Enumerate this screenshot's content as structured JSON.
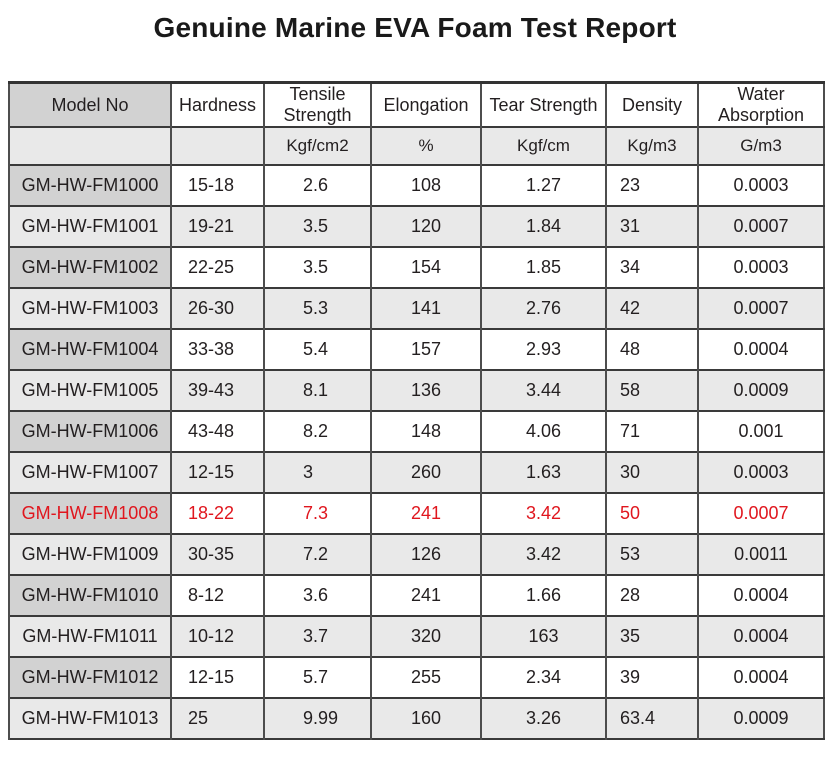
{
  "page": {
    "title": "Genuine Marine EVA Foam Test Report"
  },
  "colors": {
    "highlight_text": "#e0161e",
    "model_column_dark": "#d2d2d2",
    "row_stripe_light": "#e9e9e9"
  },
  "table": {
    "columns": [
      {
        "label": "Model No",
        "unit": ""
      },
      {
        "label": "Hardness",
        "unit": ""
      },
      {
        "label": "Tensile Strength",
        "unit": "Kgf/cm2"
      },
      {
        "label": "Elongation",
        "unit": "%"
      },
      {
        "label": "Tear Strength",
        "unit": "Kgf/cm"
      },
      {
        "label": "Density",
        "unit": "Kg/m3"
      },
      {
        "label": "Water Absorption",
        "unit": "G/m3"
      }
    ],
    "rows": [
      {
        "model": "GM-HW-FM1000",
        "values": [
          "15-18",
          "2.6",
          "108",
          "1.27",
          "23",
          "0.0003"
        ],
        "highlight": false
      },
      {
        "model": "GM-HW-FM1001",
        "values": [
          "19-21",
          "3.5",
          "120",
          "1.84",
          "31",
          "0.0007"
        ],
        "highlight": false
      },
      {
        "model": "GM-HW-FM1002",
        "values": [
          "22-25",
          "3.5",
          "154",
          "1.85",
          "34",
          "0.0003"
        ],
        "highlight": false
      },
      {
        "model": "GM-HW-FM1003",
        "values": [
          "26-30",
          "5.3",
          "141",
          "2.76",
          "42",
          "0.0007"
        ],
        "highlight": false
      },
      {
        "model": "GM-HW-FM1004",
        "values": [
          "33-38",
          "5.4",
          "157",
          "2.93",
          "48",
          "0.0004"
        ],
        "highlight": false
      },
      {
        "model": "GM-HW-FM1005",
        "values": [
          "39-43",
          "8.1",
          "136",
          "3.44",
          "58",
          "0.0009"
        ],
        "highlight": false
      },
      {
        "model": "GM-HW-FM1006",
        "values": [
          "43-48",
          "8.2",
          "148",
          "4.06",
          "71",
          "0.001"
        ],
        "highlight": false
      },
      {
        "model": "GM-HW-FM1007",
        "values": [
          "12-15",
          "3",
          "260",
          "1.63",
          "30",
          "0.0003"
        ],
        "highlight": false
      },
      {
        "model": "GM-HW-FM1008",
        "values": [
          "18-22",
          "7.3",
          "241",
          "3.42",
          "50",
          "0.0007"
        ],
        "highlight": true
      },
      {
        "model": "GM-HW-FM1009",
        "values": [
          "30-35",
          "7.2",
          "126",
          "3.42",
          "53",
          "0.0011"
        ],
        "highlight": false
      },
      {
        "model": "GM-HW-FM1010",
        "values": [
          "8-12",
          "3.6",
          "241",
          "1.66",
          "28",
          "0.0004"
        ],
        "highlight": false
      },
      {
        "model": "GM-HW-FM1011",
        "values": [
          "10-12",
          "3.7",
          "320",
          "163",
          "35",
          "0.0004"
        ],
        "highlight": false
      },
      {
        "model": "GM-HW-FM1012",
        "values": [
          "12-15",
          "5.7",
          "255",
          "2.34",
          "39",
          "0.0004"
        ],
        "highlight": false
      },
      {
        "model": "GM-HW-FM1013",
        "values": [
          "25",
          "9.99",
          "160",
          "3.26",
          "63.4",
          "0.0009"
        ],
        "highlight": false
      }
    ]
  }
}
